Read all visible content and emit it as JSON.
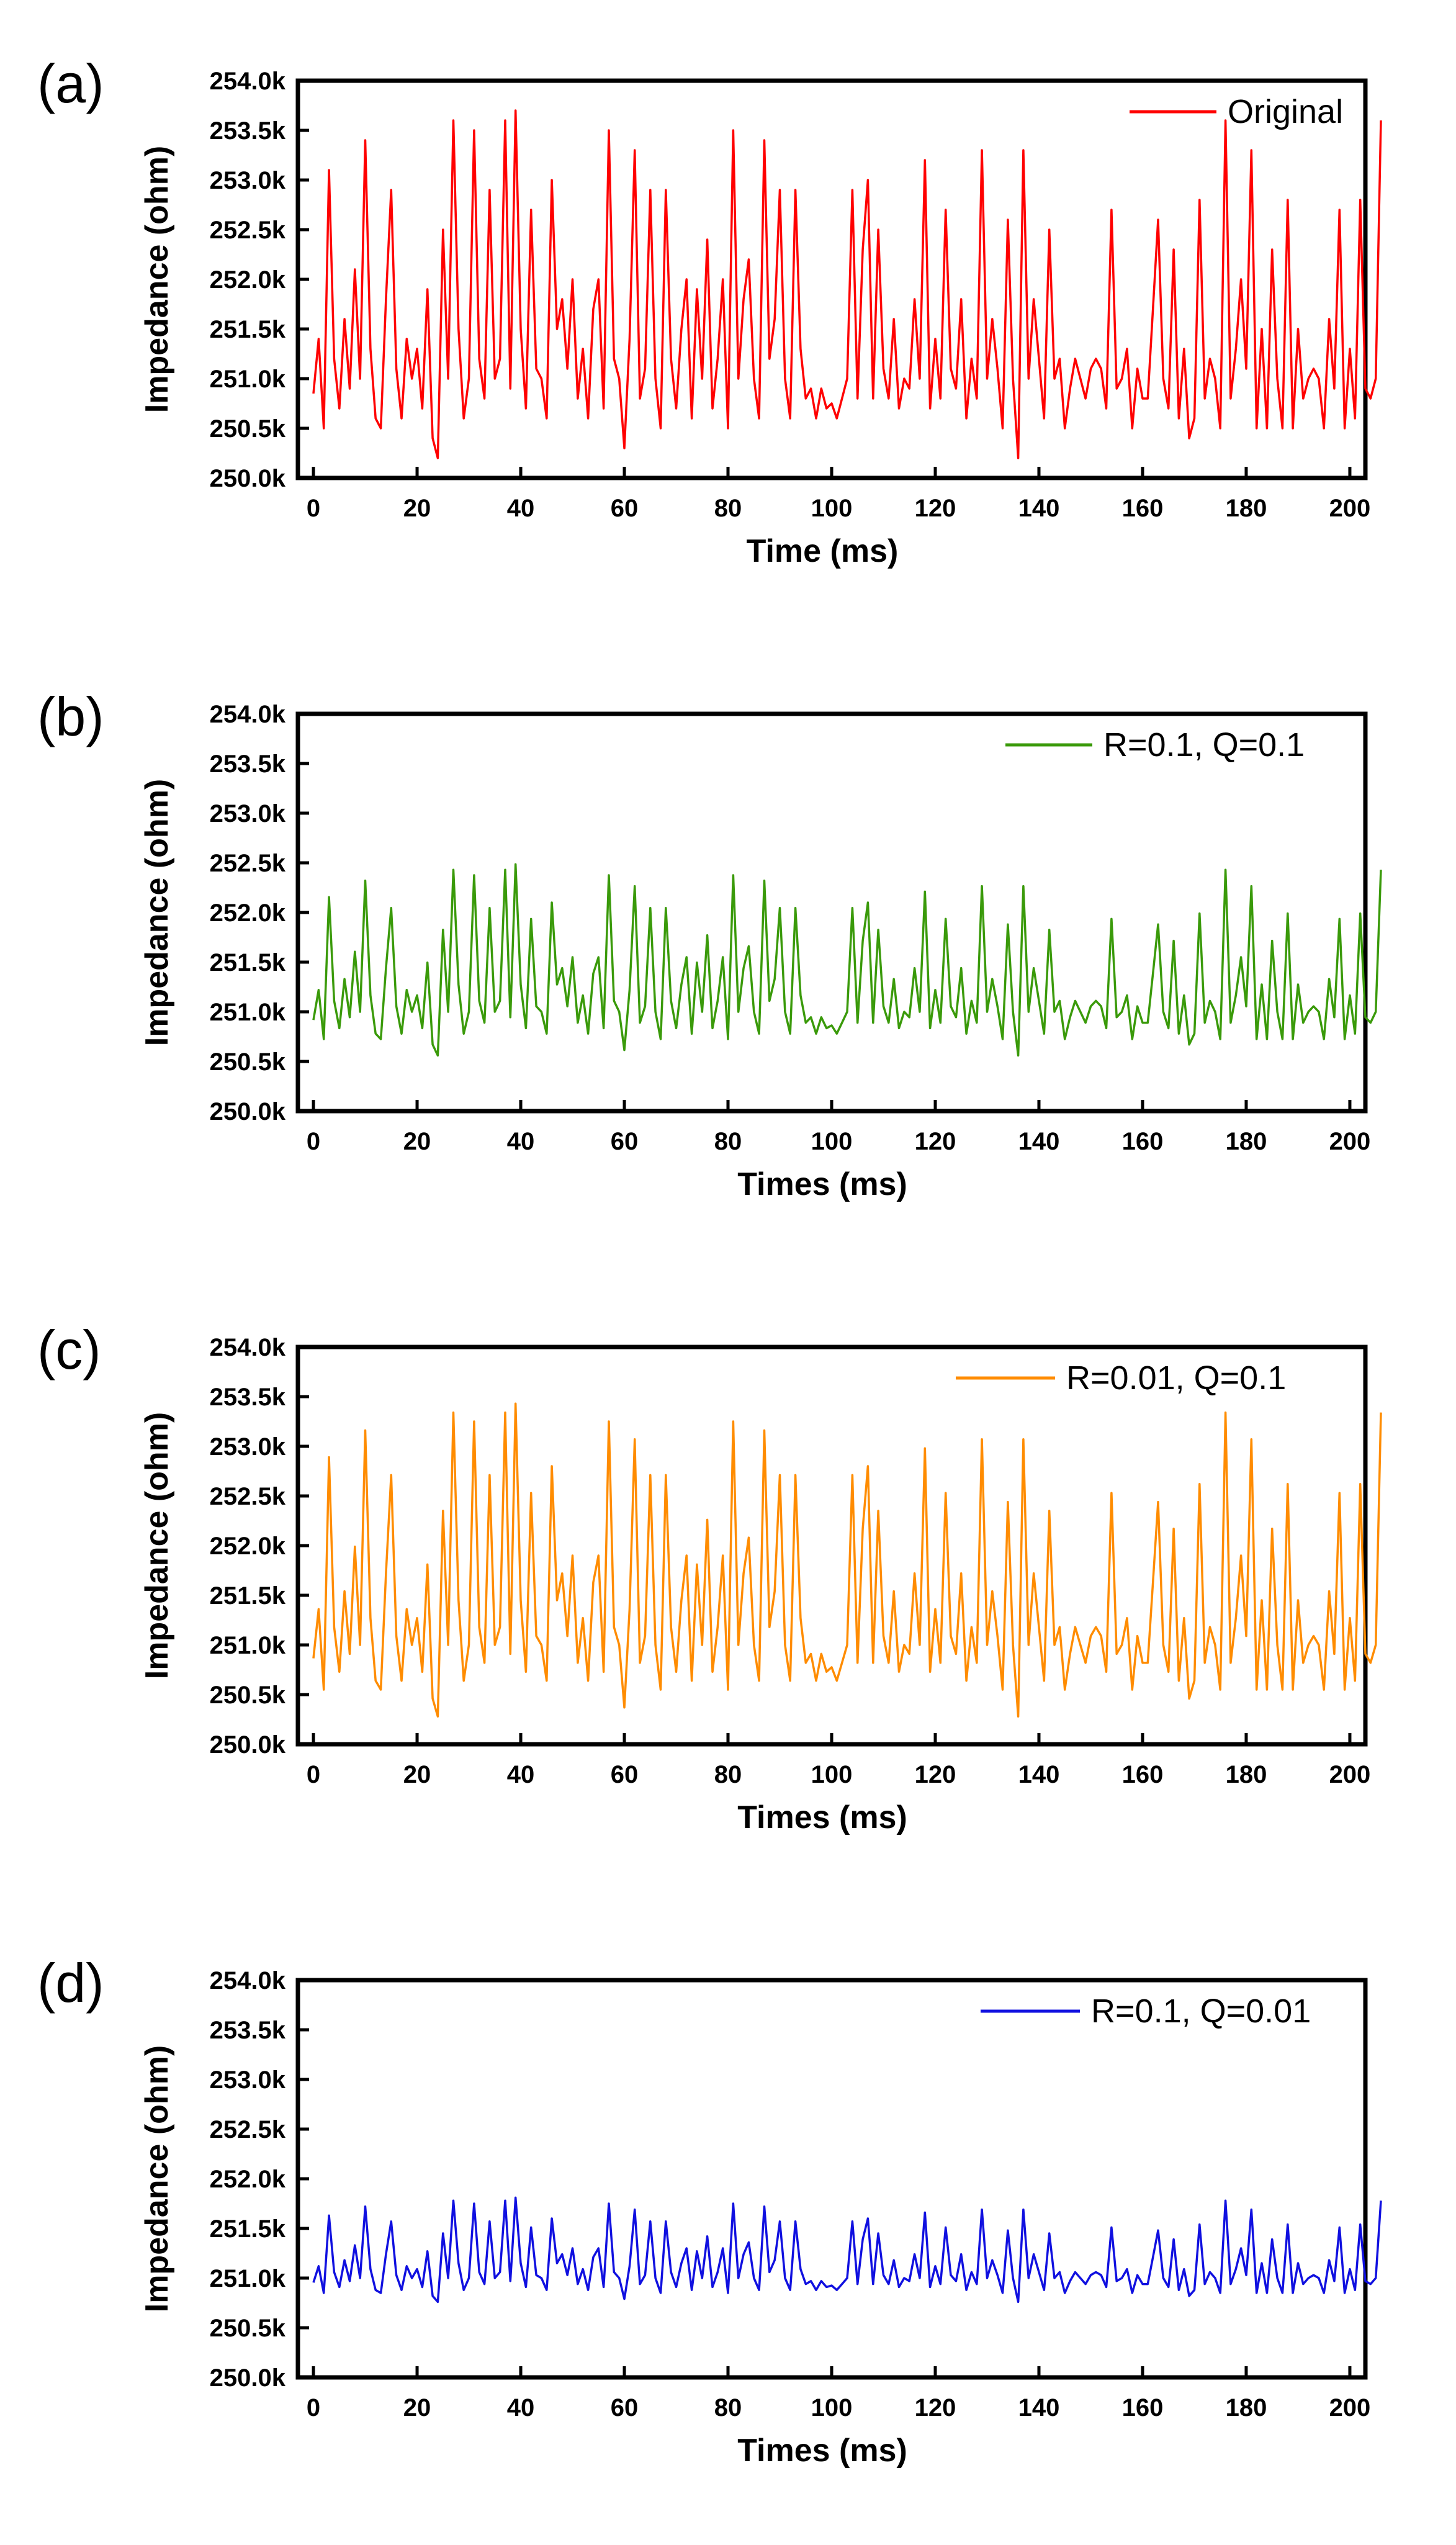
{
  "chart_data": [
    {
      "panel": "(a)",
      "type": "line",
      "title": "",
      "xlabel": "Time (ms)",
      "ylabel": "Impedance (ohm)",
      "xlim": [
        -3,
        203
      ],
      "ylim": [
        250.0,
        254.0
      ],
      "xticks": [
        0,
        20,
        40,
        60,
        80,
        100,
        120,
        140,
        160,
        180,
        200
      ],
      "xtick_labels": [
        "0",
        "20",
        "40",
        "60",
        "80",
        "100",
        "120",
        "140",
        "160",
        "180",
        "200"
      ],
      "yticks": [
        250.0,
        250.5,
        251.0,
        251.5,
        252.0,
        252.5,
        253.0,
        253.5,
        254.0
      ],
      "ytick_labels": [
        "250.0k",
        "250.5k",
        "251.0k",
        "251.5k",
        "252.0k",
        "252.5k",
        "253.0k",
        "253.5k",
        "254.0k"
      ],
      "legend_position": "top-right",
      "series": [
        {
          "name": "Original",
          "color": "#ff0000",
          "amplitude": 1.0
        }
      ]
    },
    {
      "panel": "(b)",
      "type": "line",
      "title": "",
      "xlabel": "Times (ms)",
      "ylabel": "Impedance (ohm)",
      "xlim": [
        -3,
        203
      ],
      "ylim": [
        250.0,
        254.0
      ],
      "xticks": [
        0,
        20,
        40,
        60,
        80,
        100,
        120,
        140,
        160,
        180,
        200
      ],
      "xtick_labels": [
        "0",
        "20",
        "40",
        "60",
        "80",
        "100",
        "120",
        "140",
        "160",
        "180",
        "200"
      ],
      "yticks": [
        250.0,
        250.5,
        251.0,
        251.5,
        252.0,
        252.5,
        253.0,
        253.5,
        254.0
      ],
      "ytick_labels": [
        "250.0k",
        "250.5k",
        "251.0k",
        "251.5k",
        "252.0k",
        "252.5k",
        "253.0k",
        "253.5k",
        "254.0k"
      ],
      "legend_position": "top-right",
      "series": [
        {
          "name": "R=0.1, Q=0.1",
          "color": "#3a9a0a",
          "amplitude": 0.55
        }
      ]
    },
    {
      "panel": "(c)",
      "type": "line",
      "title": "",
      "xlabel": "Times (ms)",
      "ylabel": "Impedance (ohm)",
      "xlim": [
        -3,
        203
      ],
      "ylim": [
        250.0,
        254.0
      ],
      "xticks": [
        0,
        20,
        40,
        60,
        80,
        100,
        120,
        140,
        160,
        180,
        200
      ],
      "xtick_labels": [
        "0",
        "20",
        "40",
        "60",
        "80",
        "100",
        "120",
        "140",
        "160",
        "180",
        "200"
      ],
      "yticks": [
        250.0,
        250.5,
        251.0,
        251.5,
        252.0,
        252.5,
        253.0,
        253.5,
        254.0
      ],
      "ytick_labels": [
        "250.0k",
        "250.5k",
        "251.0k",
        "251.5k",
        "252.0k",
        "252.5k",
        "253.0k",
        "253.5k",
        "254.0k"
      ],
      "legend_position": "top-right",
      "series": [
        {
          "name": "R=0.01, Q=0.1",
          "color": "#ff8c00",
          "amplitude": 0.9
        }
      ]
    },
    {
      "panel": "(d)",
      "type": "line",
      "title": "",
      "xlabel": "Times (ms)",
      "ylabel": "Impedance (ohm)",
      "xlim": [
        -3,
        203
      ],
      "ylim": [
        250.0,
        254.0
      ],
      "xticks": [
        0,
        20,
        40,
        60,
        80,
        100,
        120,
        140,
        160,
        180,
        200
      ],
      "xtick_labels": [
        "0",
        "20",
        "40",
        "60",
        "80",
        "100",
        "120",
        "140",
        "160",
        "180",
        "200"
      ],
      "yticks": [
        250.0,
        250.5,
        251.0,
        251.5,
        252.0,
        252.5,
        253.0,
        253.5,
        254.0
      ],
      "ytick_labels": [
        "250.0k",
        "250.5k",
        "251.0k",
        "251.5k",
        "252.0k",
        "252.5k",
        "253.0k",
        "253.5k",
        "254.0k"
      ],
      "legend_position": "top-right",
      "series": [
        {
          "name": "R=0.1, Q=0.01",
          "color": "#1010e0",
          "amplitude": 0.3
        }
      ]
    }
  ],
  "original_samples": {
    "x_step": 1,
    "y": [
      250.85,
      251.4,
      250.5,
      253.1,
      251.2,
      250.7,
      251.6,
      250.9,
      252.1,
      251.0,
      253.4,
      251.3,
      250.6,
      250.5,
      251.8,
      252.9,
      251.1,
      250.6,
      251.4,
      251.0,
      251.3,
      250.7,
      251.9,
      250.4,
      250.2,
      252.5,
      251.0,
      253.6,
      251.5,
      250.6,
      251.0,
      253.5,
      251.2,
      250.8,
      252.9,
      251.0,
      251.2,
      253.6,
      250.9,
      253.7,
      251.5,
      250.7,
      252.7,
      251.1,
      251.0,
      250.6,
      253.0,
      251.5,
      251.8,
      251.1,
      252.0,
      250.8,
      251.3,
      250.6,
      251.7,
      252.0,
      250.7,
      253.5,
      251.2,
      251.0,
      250.3,
      251.4,
      253.3,
      250.8,
      251.1,
      252.9,
      251.0,
      250.5,
      252.9,
      251.2,
      250.7,
      251.5,
      252.0,
      250.6,
      251.9,
      251.0,
      252.4,
      250.7,
      251.2,
      252.0,
      250.5,
      253.5,
      251.0,
      251.8,
      252.2,
      251.0,
      250.6,
      253.4,
      251.2,
      251.6,
      252.9,
      251.0,
      250.6,
      252.9,
      251.3,
      250.8,
      250.9,
      250.6,
      250.9,
      250.7,
      250.75,
      250.6,
      250.8,
      251.0,
      252.9,
      250.8,
      252.3,
      253.0,
      250.8,
      252.5,
      251.1,
      250.8,
      251.6,
      250.7,
      251.0,
      250.9,
      251.8,
      251.0,
      253.2,
      250.7,
      251.4,
      250.8,
      252.7,
      251.1,
      250.9,
      251.8,
      250.6,
      251.2,
      250.8,
      253.3,
      251.0,
      251.6,
      251.1,
      250.5,
      252.6,
      251.0,
      250.2,
      253.3,
      251.0,
      251.8,
      251.2,
      250.6,
      252.5,
      251.0,
      251.2,
      250.5,
      250.9,
      251.2,
      251.0,
      250.8,
      251.1,
      251.2,
      251.1,
      250.7,
      252.7,
      250.9,
      251.0,
      251.3,
      250.5,
      251.1,
      250.8,
      250.8,
      251.7,
      252.6,
      251.0,
      250.7,
      252.3,
      250.6,
      251.3,
      250.4,
      250.6,
      252.8,
      250.8,
      251.2,
      251.0,
      250.5,
      253.6,
      250.8,
      251.3,
      252.0,
      251.1,
      253.3,
      250.5,
      251.5,
      250.5,
      252.3,
      251.0,
      250.5,
      252.8,
      250.5,
      251.5,
      250.8,
      251.0,
      251.1,
      251.0,
      250.5,
      251.6,
      250.9,
      252.7,
      250.5,
      251.3,
      250.6,
      252.8,
      250.9,
      250.8,
      251.0,
      253.6
    ]
  },
  "layout": {
    "panels": [
      "a",
      "b",
      "c",
      "d"
    ]
  }
}
